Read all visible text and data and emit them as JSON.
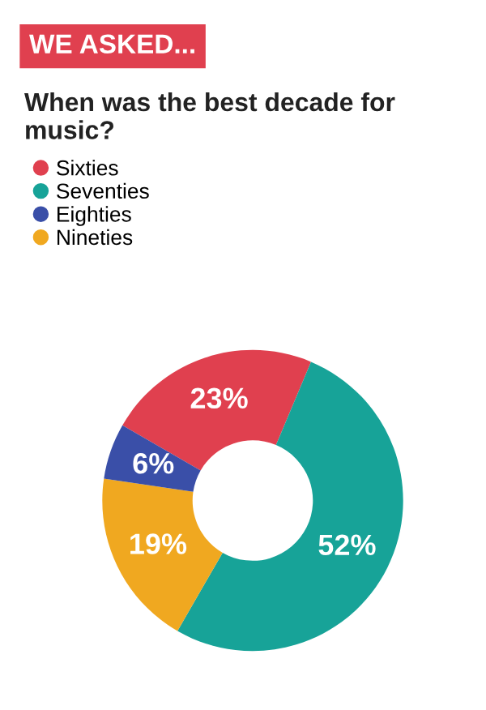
{
  "chart_data": {
    "type": "donut",
    "subtitle": "WE ASKED...",
    "title": "When was the best decade for music?",
    "categories": [
      "Sixties",
      "Seventies",
      "Eighties",
      "Nineties"
    ],
    "values": [
      23,
      52,
      6,
      19
    ],
    "value_labels": [
      "23%",
      "52%",
      "6%",
      "19%"
    ],
    "colors": [
      "#e0404f",
      "#17a398",
      "#3a4fa8",
      "#f0a820"
    ],
    "legend": "top left"
  }
}
